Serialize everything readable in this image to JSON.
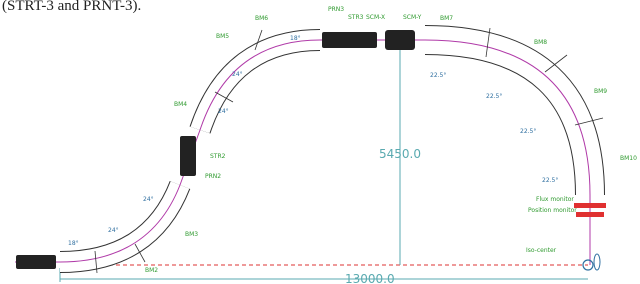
{
  "header": {
    "caption": "(STRT-3 and PRNT-3)."
  },
  "magnets": [
    "BM2",
    "BM3",
    "BM4",
    "BM5",
    "BM6",
    "BM7",
    "BM8",
    "BM9",
    "BM10"
  ],
  "devices": [
    "PRN2",
    "STR2",
    "PRN3",
    "STR3",
    "SCM-X",
    "SCM-Y"
  ],
  "angles": [
    "18°",
    "24°",
    "24°",
    "24°",
    "24°",
    "18°",
    "22.5°",
    "22.5°",
    "22.5°",
    "22.5°"
  ],
  "monitors": [
    "Flux monitor",
    "Position monitor"
  ],
  "iso_center": "Iso-center",
  "dimensions": {
    "vertical": "5450.0",
    "horizontal": "13000.0"
  }
}
